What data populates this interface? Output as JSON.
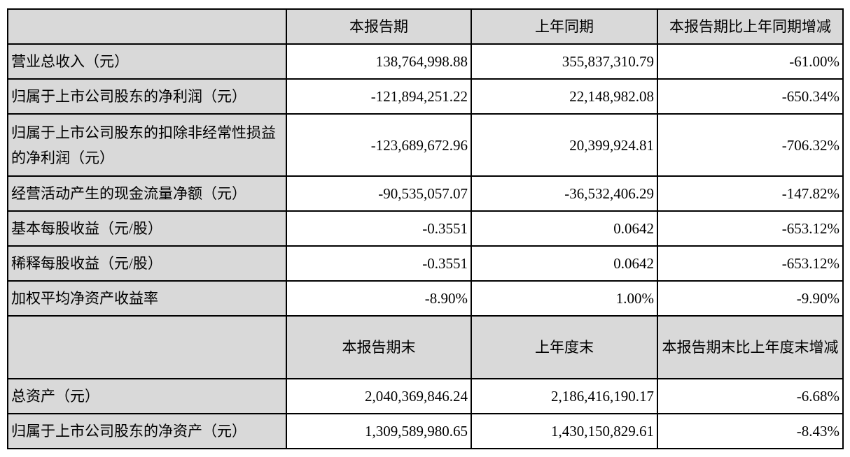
{
  "header1": [
    "",
    "本报告期",
    "上年同期",
    "本报告期比上年同期增减"
  ],
  "rows1": [
    {
      "label": "营业总收入（元）",
      "current": "138,764,998.88",
      "prior": "355,837,310.79",
      "change": "-61.00%"
    },
    {
      "label": "归属于上市公司股东的净利润（元）",
      "current": "-121,894,251.22",
      "prior": "22,148,982.08",
      "change": "-650.34%"
    },
    {
      "label": "归属于上市公司股东的扣除非经常性损益的净利润（元）",
      "current": "-123,689,672.96",
      "prior": "20,399,924.81",
      "change": "-706.32%"
    },
    {
      "label": "经营活动产生的现金流量净额（元）",
      "current": "-90,535,057.07",
      "prior": "-36,532,406.29",
      "change": "-147.82%"
    },
    {
      "label": "基本每股收益（元/股）",
      "current": "-0.3551",
      "prior": "0.0642",
      "change": "-653.12%"
    },
    {
      "label": "稀释每股收益（元/股）",
      "current": "-0.3551",
      "prior": "0.0642",
      "change": "-653.12%"
    },
    {
      "label": "加权平均净资产收益率",
      "current": "-8.90%",
      "prior": "1.00%",
      "change": "-9.90%"
    }
  ],
  "header2": [
    "",
    "本报告期末",
    "上年度末",
    "本报告期末比上年度末增减"
  ],
  "rows2": [
    {
      "label": "总资产（元）",
      "current": "2,040,369,846.24",
      "prior": "2,186,416,190.17",
      "change": "-6.68%"
    },
    {
      "label": "归属于上市公司股东的净资产（元）",
      "current": "1,309,589,980.65",
      "prior": "1,430,150,829.61",
      "change": "-8.43%"
    }
  ]
}
